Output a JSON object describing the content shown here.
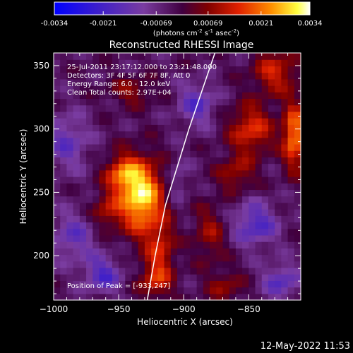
{
  "colorbar": {
    "ticks": [
      "-0.0034",
      "-0.0021",
      "-0.00069",
      "0.00069",
      "0.0021",
      "0.0034"
    ],
    "units_main": "(photons cm",
    "units_exp1": "-2",
    "units_mid": " s",
    "units_exp2": "-1",
    "units_end": " asec",
    "units_exp3": "-2",
    "units_close": ")"
  },
  "footer": {
    "timestamp": "12-May-2022 11:53"
  },
  "chart_data": {
    "type": "heatmap",
    "title": "Reconstructed RHESSI Image",
    "xlabel": "Heliocentric X (arcsec)",
    "ylabel": "Heliocentric Y (arcsec)",
    "xlim": [
      -1000,
      -810
    ],
    "ylim": [
      165,
      360
    ],
    "xticks": [
      -1000,
      -950,
      -900,
      -850
    ],
    "yticks": [
      200,
      250,
      300,
      350
    ],
    "xtick_labels": [
      "−1000",
      "−950",
      "−900",
      "−850"
    ],
    "ytick_labels": [
      "200",
      "250",
      "300",
      "350"
    ],
    "value_range": [
      -0.0034,
      0.0034
    ],
    "annotations": [
      "25-Jul-2011 23:17:12.000 to 23:21:48.000",
      "Detectors: 3F 4F 5F 6F 7F 8F, Att 0",
      "Energy Range: 6.0 - 12.0 keV",
      "Clean     Total counts: 2.97E+04"
    ],
    "peak_label": "Position of Peak = [-933,247]",
    "peak": [
      -933,
      247
    ],
    "limb_curve": [
      [
        -928,
        165
      ],
      [
        -922,
        200
      ],
      [
        -914,
        240
      ],
      [
        -905,
        270
      ],
      [
        -896,
        300
      ],
      [
        -886,
        330
      ],
      [
        -876,
        360
      ]
    ],
    "sources": [
      {
        "x": -933,
        "y": 247,
        "amp": 0.0034,
        "sx": 12,
        "sy": 20
      },
      {
        "x": -948,
        "y": 265,
        "amp": 0.0018,
        "sx": 9,
        "sy": 10
      },
      {
        "x": -960,
        "y": 235,
        "amp": 0.0012,
        "sx": 8,
        "sy": 10
      },
      {
        "x": -918,
        "y": 205,
        "amp": 0.0015,
        "sx": 8,
        "sy": 16
      },
      {
        "x": -922,
        "y": 180,
        "amp": 0.0014,
        "sx": 9,
        "sy": 10
      },
      {
        "x": -940,
        "y": 330,
        "amp": 0.001,
        "sx": 12,
        "sy": 8
      },
      {
        "x": -830,
        "y": 345,
        "amp": 0.0016,
        "sx": 12,
        "sy": 12
      },
      {
        "x": -848,
        "y": 300,
        "amp": 0.0018,
        "sx": 12,
        "sy": 14
      },
      {
        "x": -815,
        "y": 295,
        "amp": 0.0026,
        "sx": 6,
        "sy": 18
      },
      {
        "x": -860,
        "y": 265,
        "amp": 0.0012,
        "sx": 10,
        "sy": 10
      },
      {
        "x": -880,
        "y": 218,
        "amp": 0.0011,
        "sx": 9,
        "sy": 16
      },
      {
        "x": -868,
        "y": 175,
        "amp": 0.001,
        "sx": 10,
        "sy": 10
      },
      {
        "x": -990,
        "y": 290,
        "amp": -0.0012,
        "sx": 12,
        "sy": 16
      },
      {
        "x": -985,
        "y": 215,
        "amp": -0.0012,
        "sx": 12,
        "sy": 14
      },
      {
        "x": -962,
        "y": 185,
        "amp": -0.0016,
        "sx": 10,
        "sy": 10
      },
      {
        "x": -890,
        "y": 320,
        "amp": -0.0014,
        "sx": 10,
        "sy": 12
      },
      {
        "x": -845,
        "y": 225,
        "amp": -0.0016,
        "sx": 12,
        "sy": 12
      },
      {
        "x": -825,
        "y": 180,
        "amp": -0.0014,
        "sx": 10,
        "sy": 10
      },
      {
        "x": -905,
        "y": 260,
        "amp": -0.0008,
        "sx": 6,
        "sy": 12
      }
    ]
  }
}
